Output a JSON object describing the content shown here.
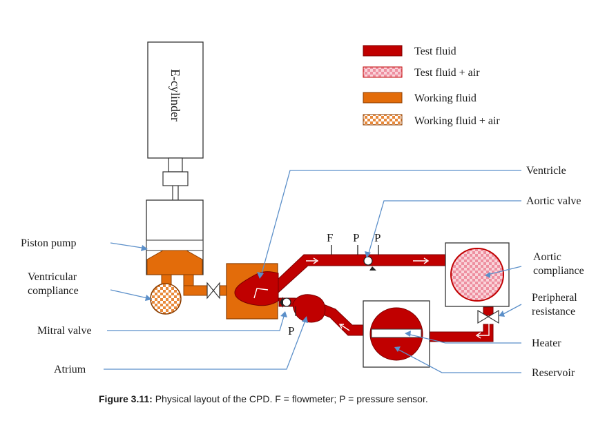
{
  "diagram": {
    "legend": [
      {
        "label": "Test fluid",
        "swatch": "solid-red"
      },
      {
        "label": "Test fluid + air",
        "swatch": "pink-checker"
      },
      {
        "label": "Working fluid",
        "swatch": "solid-orange"
      },
      {
        "label": "Working fluid + air",
        "swatch": "orange-checker"
      }
    ],
    "components": {
      "e_cylinder": "E-cylinder"
    },
    "left_labels": {
      "piston_pump": "Piston pump",
      "ventricular_compliance": "Ventricular compliance",
      "ventricular_compliance_l1": "Ventricular",
      "ventricular_compliance_l2": "compliance",
      "mitral_valve": "Mitral valve",
      "atrium": "Atrium"
    },
    "right_labels": {
      "ventricle": "Ventricle",
      "aortic_valve": "Aortic valve",
      "aortic_compliance_l1": "Aortic",
      "aortic_compliance_l2": "compliance",
      "peripheral_resistance_l1": "Peripheral",
      "peripheral_resistance_l2": "resistance",
      "heater": "Heater",
      "reservoir": "Reservoir"
    },
    "sensors": {
      "f": "F",
      "p1": "P",
      "p2": "P",
      "p_mitral": "P"
    },
    "caption": {
      "bold": "Figure 3.11:",
      "text": " Physical layout of the CPD. F = flowmeter; P = pressure sensor."
    },
    "colors": {
      "test_fluid": "#c00000",
      "working_fluid": "#e36c0a",
      "test_fluid_air": "#f4a7b2",
      "working_fluid_air": "#f5b27a",
      "leader_line": "#5b8fc9"
    }
  }
}
